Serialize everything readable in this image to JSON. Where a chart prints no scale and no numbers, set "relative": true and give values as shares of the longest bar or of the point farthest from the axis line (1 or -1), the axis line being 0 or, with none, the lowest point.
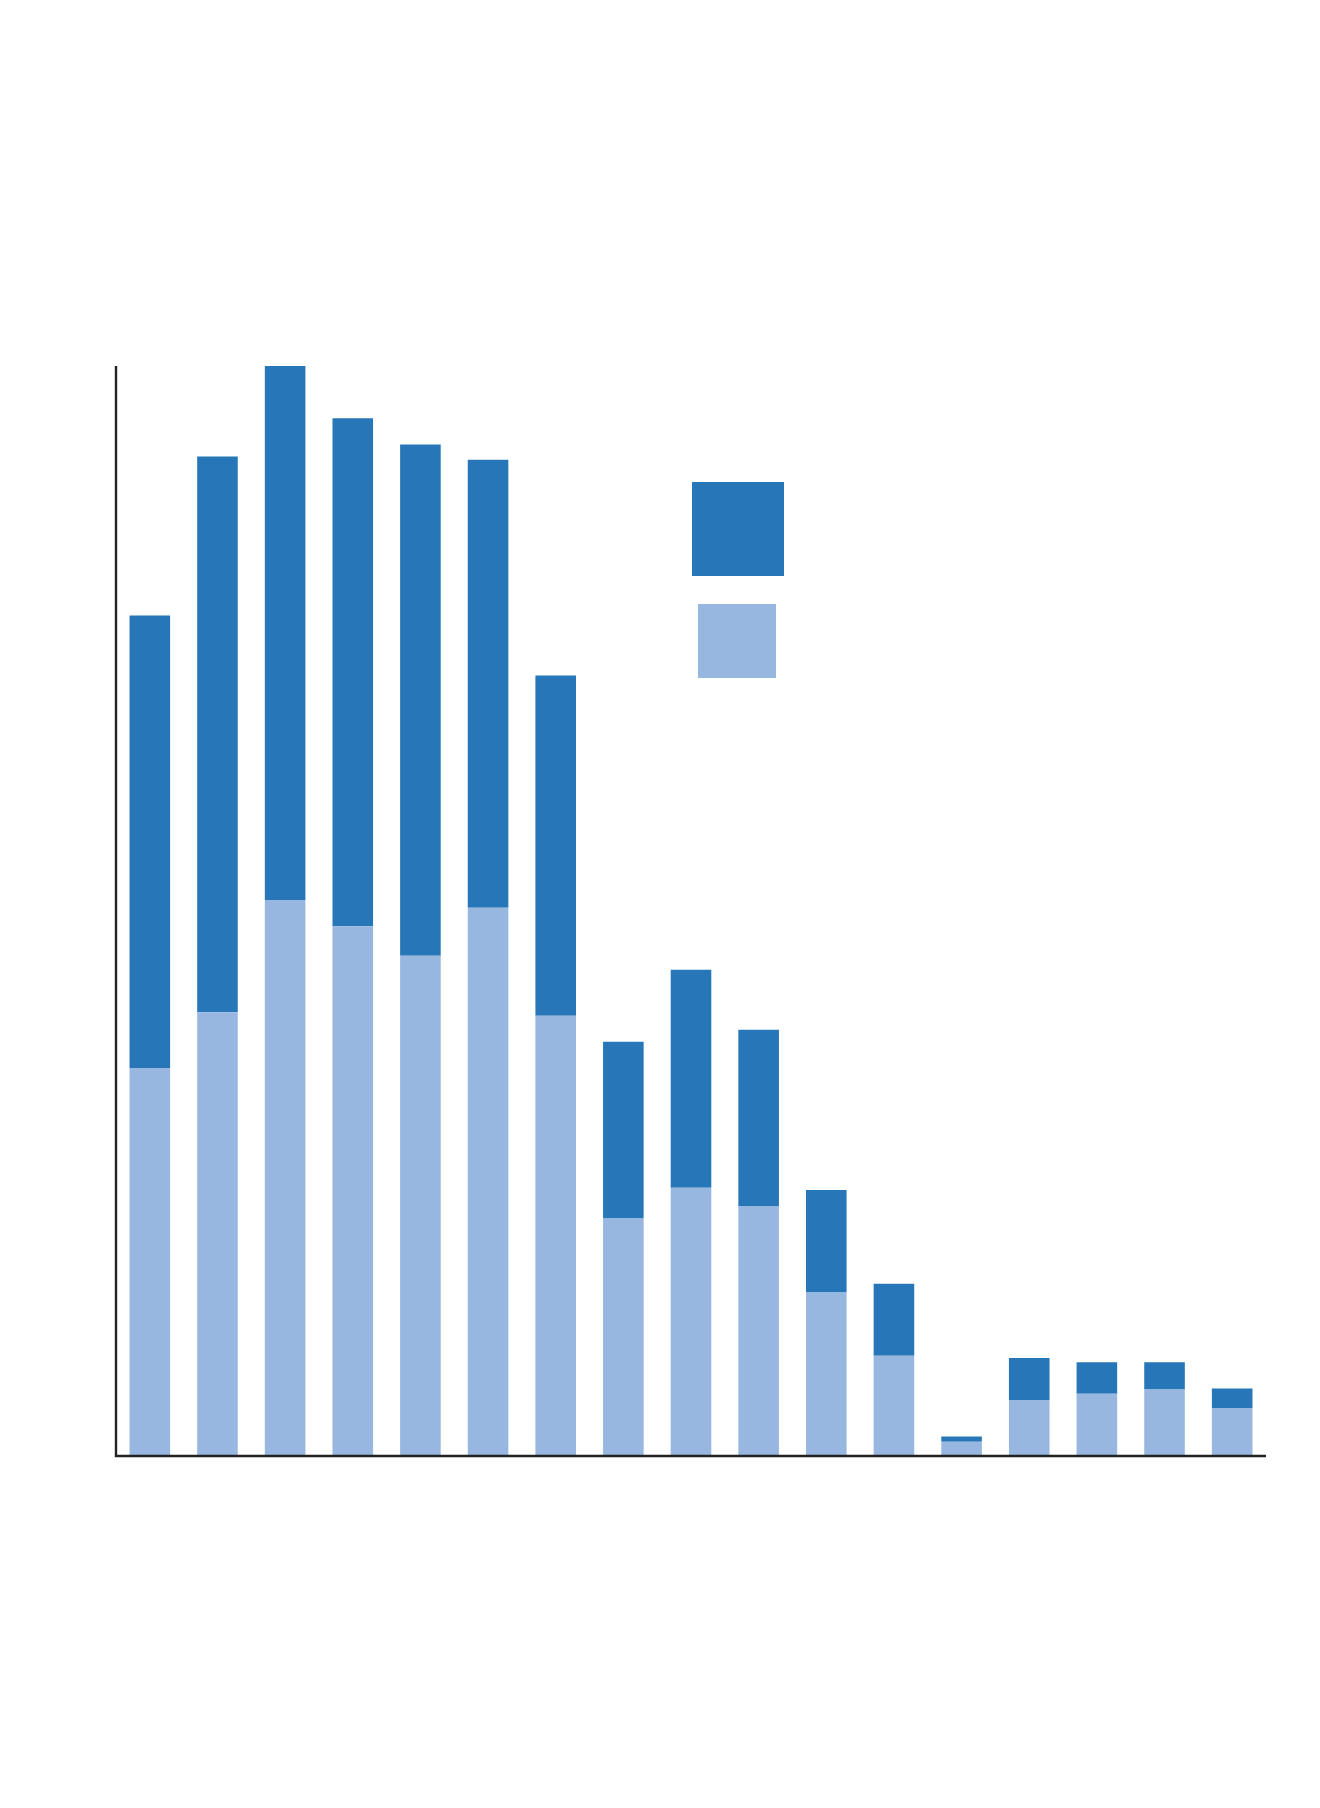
{
  "chart_data": {
    "type": "bar",
    "relative": true,
    "stacked": true,
    "categories": [
      null,
      null,
      null,
      null,
      null,
      null,
      null,
      null,
      null,
      null,
      null,
      null,
      null,
      null,
      null,
      null,
      null
    ],
    "series": [
      {
        "color": "#97b7e0",
        "values": [
          0.356,
          0.407,
          0.51,
          0.486,
          0.459,
          0.503,
          0.404,
          0.218,
          0.246,
          0.229,
          0.15,
          0.092,
          0.013,
          0.051,
          0.057,
          0.061,
          0.044
        ]
      },
      {
        "color": "#2777b8",
        "values": [
          0.415,
          0.51,
          0.49,
          0.466,
          0.469,
          0.411,
          0.312,
          0.162,
          0.2,
          0.162,
          0.094,
          0.066,
          0.005,
          0.039,
          0.029,
          0.025,
          0.018
        ]
      }
    ]
  }
}
